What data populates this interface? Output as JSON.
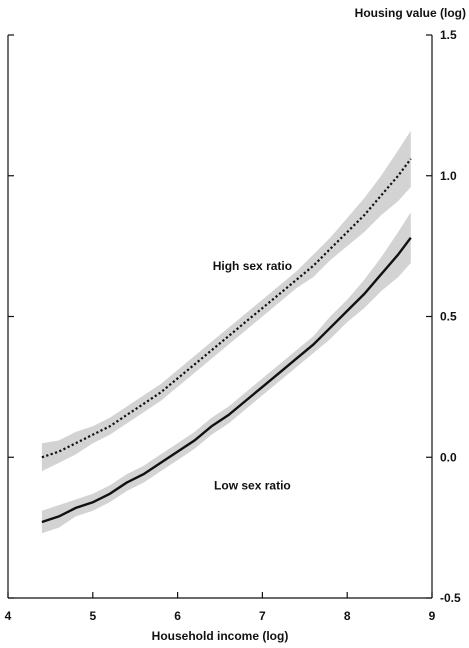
{
  "chart_data": {
    "type": "line",
    "title": "",
    "xlabel": "Household income (log)",
    "ylabel": "Housing value (log)",
    "xlim": [
      4,
      9
    ],
    "ylim": [
      -0.5,
      1.5
    ],
    "xticks": [
      "4",
      "5",
      "6",
      "7",
      "8",
      "9"
    ],
    "yticks": [
      "-0.5",
      "0.0",
      "0.5",
      "1.0",
      "1.5"
    ],
    "series": [
      {
        "name": "High sex ratio",
        "style": "dotted",
        "color": "#111111",
        "band_color": "#d3d3d3",
        "x": [
          4.4,
          4.6,
          4.8,
          5.0,
          5.2,
          5.4,
          5.6,
          5.8,
          6.0,
          6.2,
          6.4,
          6.6,
          6.8,
          7.0,
          7.2,
          7.4,
          7.6,
          7.8,
          8.0,
          8.2,
          8.4,
          8.6,
          8.75
        ],
        "y": [
          0.0,
          0.02,
          0.05,
          0.08,
          0.11,
          0.15,
          0.19,
          0.23,
          0.28,
          0.33,
          0.38,
          0.43,
          0.48,
          0.53,
          0.58,
          0.63,
          0.68,
          0.74,
          0.8,
          0.86,
          0.93,
          1.0,
          1.06
        ],
        "band": [
          0.05,
          0.04,
          0.04,
          0.03,
          0.03,
          0.03,
          0.03,
          0.03,
          0.03,
          0.03,
          0.03,
          0.03,
          0.03,
          0.03,
          0.03,
          0.03,
          0.04,
          0.04,
          0.05,
          0.06,
          0.07,
          0.09,
          0.1
        ]
      },
      {
        "name": "Low sex ratio",
        "style": "solid",
        "color": "#111111",
        "band_color": "#d3d3d3",
        "x": [
          4.4,
          4.6,
          4.8,
          5.0,
          5.2,
          5.4,
          5.6,
          5.8,
          6.0,
          6.2,
          6.4,
          6.6,
          6.8,
          7.0,
          7.2,
          7.4,
          7.6,
          7.8,
          8.0,
          8.2,
          8.4,
          8.6,
          8.75
        ],
        "y": [
          -0.23,
          -0.21,
          -0.18,
          -0.16,
          -0.13,
          -0.09,
          -0.06,
          -0.02,
          0.02,
          0.06,
          0.11,
          0.15,
          0.2,
          0.25,
          0.3,
          0.35,
          0.4,
          0.46,
          0.52,
          0.58,
          0.65,
          0.72,
          0.78
        ],
        "band": [
          0.04,
          0.04,
          0.03,
          0.03,
          0.03,
          0.03,
          0.03,
          0.03,
          0.03,
          0.03,
          0.03,
          0.03,
          0.03,
          0.03,
          0.03,
          0.03,
          0.03,
          0.04,
          0.04,
          0.05,
          0.06,
          0.08,
          0.09
        ]
      }
    ],
    "annotations": [
      {
        "text": "High sex ratio",
        "x": 7.0,
        "y": 0.68
      },
      {
        "text": "Low sex ratio",
        "x": 7.0,
        "y": -0.1
      }
    ],
    "grid": false,
    "legend": "none"
  }
}
